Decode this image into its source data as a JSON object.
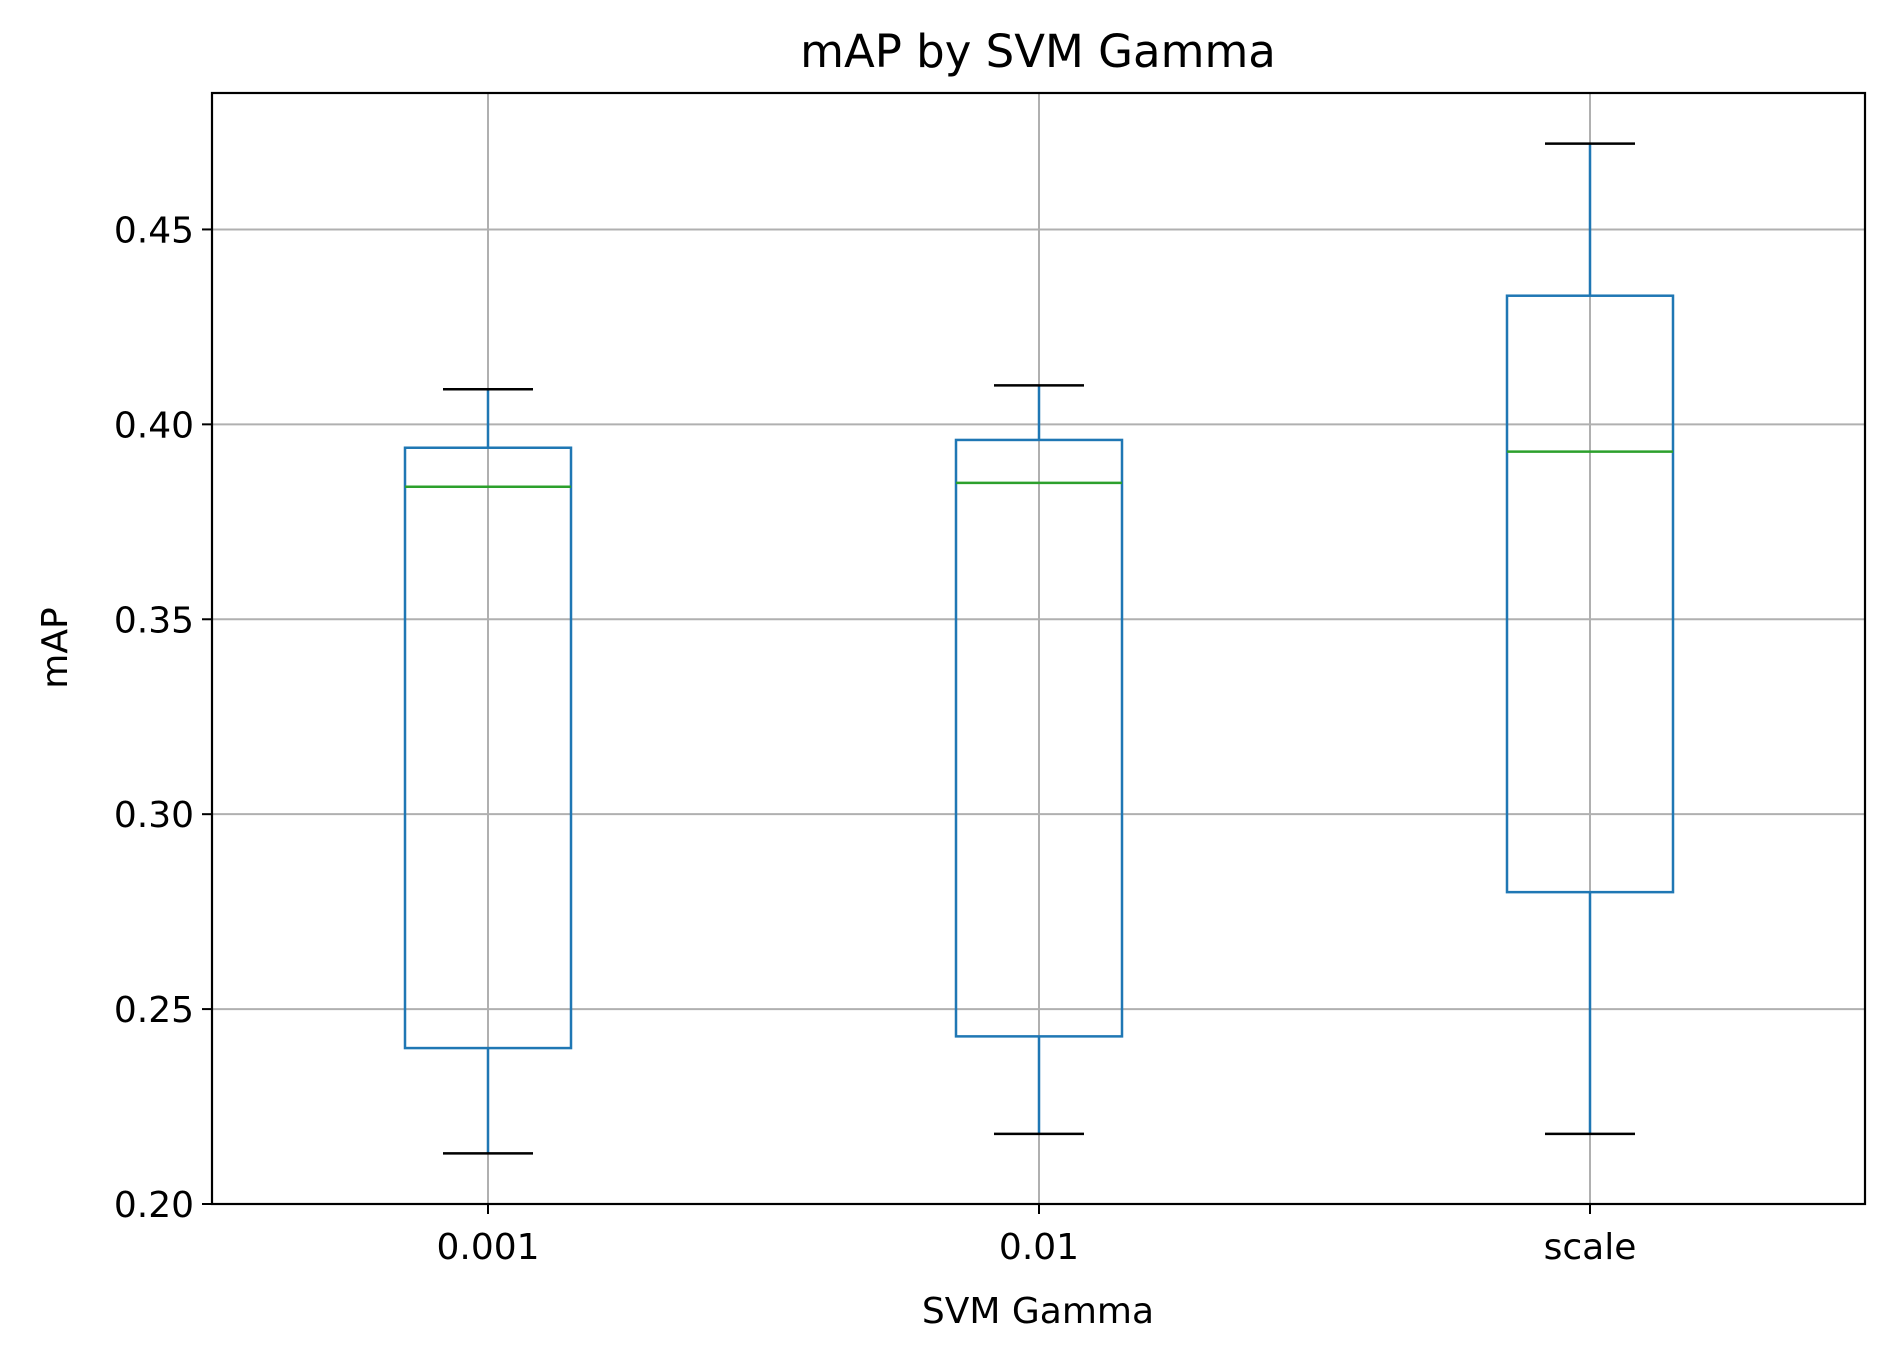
{
  "chart_data": {
    "type": "boxplot",
    "title": "mAP by SVM Gamma",
    "xlabel": "SVM Gamma",
    "ylabel": "mAP",
    "categories": [
      "0.001",
      "0.01",
      "scale"
    ],
    "ylim": [
      0.2,
      0.485
    ],
    "yticks": [
      "0.20",
      "0.25",
      "0.30",
      "0.35",
      "0.40",
      "0.45"
    ],
    "grid": true,
    "boxes": [
      {
        "category": "0.001",
        "whisker_low": 0.213,
        "q1": 0.24,
        "median": 0.384,
        "q3": 0.394,
        "whisker_high": 0.409
      },
      {
        "category": "0.01",
        "whisker_low": 0.218,
        "q1": 0.243,
        "median": 0.385,
        "q3": 0.396,
        "whisker_high": 0.41
      },
      {
        "category": "scale",
        "whisker_low": 0.218,
        "q1": 0.28,
        "median": 0.393,
        "q3": 0.433,
        "whisker_high": 0.472
      }
    ],
    "colors": {
      "box": "#1f77b4",
      "median": "#2ca02c",
      "cap": "#000000",
      "grid": "#b0b0b0",
      "axes": "#000000"
    }
  }
}
